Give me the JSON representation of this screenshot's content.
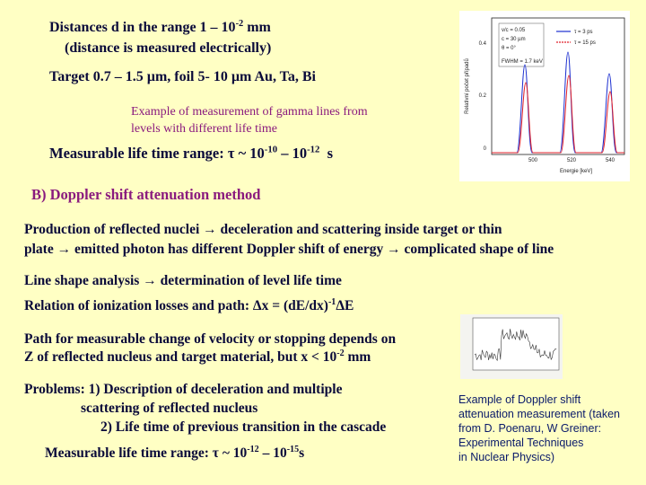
{
  "intro": {
    "range": {
      "text": "Distances d in the range 1 – 10",
      "exp": "-2",
      "unit": "mm"
    },
    "note": "(distance is measured electrically)",
    "target": "Target 0.7 – 1.5 µm,  foil 5- 10 µm Au, Ta, Bi",
    "example": [
      "Example of measurement of gamma lines from",
      "levels with different life time"
    ],
    "lifetime": {
      "text": "Measurable life time range:  τ ~ 10",
      "exp1": "-10",
      "mid": "– 10",
      "exp2": "-12",
      "unit": "s"
    }
  },
  "gamma_plot": {
    "y_label": "Relativní počet případů",
    "x_label": "Energie [keV]",
    "y_ticks": [
      "0.4",
      "0.2",
      "0"
    ],
    "x_ticks": [
      "500",
      "520",
      "540"
    ],
    "info": [
      "v/c = 0.05",
      "c = 30 µm",
      "θ = 0°",
      "FWHM = 1.7 keV"
    ],
    "legend": [
      {
        "name": "τ = 3 ps",
        "color": "#1c2fd0"
      },
      {
        "name": "τ = 15 ps",
        "color": "#e0202a"
      }
    ]
  },
  "section": {
    "heading": "B) Doppler shift attenuation method",
    "production": [
      "Production of reflected nuclei → deceleration and scattering inside target or thin",
      "plate → emitted photon has different Doppler shift of energy → complicated shape of line"
    ],
    "analysis": "Line shape analysis → determination of level life time",
    "relation": {
      "text": "Relation of ionization losses and path: Δx = (dE/dx)",
      "exp": "-1",
      "tail": "ΔE"
    },
    "path": [
      "Path for measurable change of velocity or stopping depends on",
      {
        "text": "Z of reflected nucleus and target material, but x < 10",
        "exp": "-2",
        "unit": "mm"
      }
    ],
    "problems": [
      "Problems: 1) Description of deceleration and multiple",
      "scattering of reflected nucleus",
      "2) Life time of previous transition in the cascade"
    ],
    "lifetime": {
      "text": "Measurable life time range: τ ~ 10",
      "exp1": "-12",
      "mid": "– 10",
      "exp2": "-15",
      "unit": "s"
    }
  },
  "caption": [
    "Example of Doppler shift",
    "attenuation measurement (taken",
    "from D. Poenaru, W Greiner:",
    "Experimental Techniques",
    "in Nuclear Physics)"
  ]
}
